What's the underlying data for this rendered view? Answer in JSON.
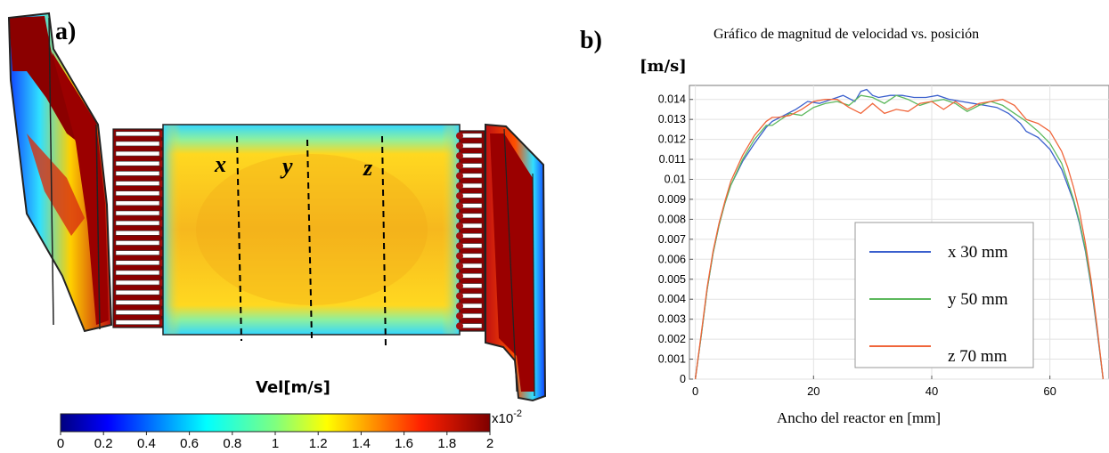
{
  "panel_a": {
    "label": "a)",
    "line_labels": [
      "x",
      "y",
      "z"
    ],
    "colorbar": {
      "title": "Vel[m/s]",
      "ticks": [
        "0",
        "0.2",
        "0.4",
        "0.6",
        "0.8",
        "1",
        "1.2",
        "1.4",
        "1.6",
        "1.8",
        "2"
      ],
      "exponent": "x10",
      "exponent_power": "-2",
      "colormap": "jet"
    }
  },
  "panel_b": {
    "label": "b)"
  },
  "chart_data": {
    "type": "line",
    "title": "Gráfico de magnitud de velocidad vs. posición",
    "xlabel": "Ancho del reactor en [mm]",
    "ylabel": "[m/s]",
    "xlim": [
      -1,
      70
    ],
    "ylim": [
      0,
      0.0147
    ],
    "xticks": [
      0,
      20,
      40,
      60
    ],
    "yticks": [
      0,
      0.001,
      0.002,
      0.003,
      0.004,
      0.005,
      0.006,
      0.007,
      0.008,
      0.009,
      0.01,
      0.011,
      0.012,
      0.013,
      0.014
    ],
    "ytick_labels": [
      "0",
      "0.001",
      "0.002",
      "0.003",
      "0.004",
      "0.005",
      "0.006",
      "0.007",
      "0.008",
      "0.009",
      "0.01",
      "0.011",
      "0.012",
      "0.013",
      "0.014"
    ],
    "grid": true,
    "legend_position": "bottom-right",
    "series": [
      {
        "name": "x 30 mm",
        "color": "#3a5fcd",
        "x": [
          0,
          1,
          2,
          3,
          4,
          5,
          6,
          8,
          10,
          12,
          13,
          15,
          17,
          19,
          21,
          23,
          25,
          27,
          28,
          29,
          30,
          31,
          33,
          35,
          37,
          39,
          41,
          43,
          45,
          47,
          49,
          51,
          53,
          55,
          56,
          58,
          60,
          62,
          63,
          64,
          65,
          66,
          67,
          68,
          69
        ],
        "y": [
          0,
          0.0022,
          0.0045,
          0.0063,
          0.0077,
          0.0088,
          0.0097,
          0.0109,
          0.0118,
          0.0126,
          0.0129,
          0.0132,
          0.0135,
          0.0139,
          0.0138,
          0.014,
          0.0142,
          0.0139,
          0.0144,
          0.0145,
          0.0142,
          0.0141,
          0.0142,
          0.0142,
          0.0141,
          0.0141,
          0.0142,
          0.014,
          0.0139,
          0.0138,
          0.0137,
          0.0136,
          0.0133,
          0.0128,
          0.0124,
          0.0121,
          0.0115,
          0.0105,
          0.0097,
          0.0089,
          0.0078,
          0.0064,
          0.0046,
          0.0024,
          0
        ]
      },
      {
        "name": "y 50 mm",
        "color": "#5cb85c",
        "x": [
          0,
          1,
          2,
          3,
          4,
          5,
          6,
          8,
          10,
          12,
          13,
          14,
          16,
          18,
          20,
          22,
          24,
          26,
          28,
          30,
          32,
          34,
          36,
          38,
          40,
          42,
          44,
          46,
          48,
          50,
          52,
          54,
          56,
          58,
          60,
          62,
          63,
          64,
          65,
          66,
          67,
          68,
          69
        ],
        "y": [
          0,
          0.0022,
          0.0045,
          0.0063,
          0.0077,
          0.0088,
          0.0097,
          0.011,
          0.012,
          0.0127,
          0.0127,
          0.0129,
          0.0133,
          0.0132,
          0.0136,
          0.0138,
          0.0139,
          0.0137,
          0.0142,
          0.0141,
          0.0138,
          0.0142,
          0.014,
          0.0137,
          0.0139,
          0.014,
          0.0138,
          0.0134,
          0.0137,
          0.0139,
          0.0137,
          0.0133,
          0.0129,
          0.0124,
          0.0118,
          0.0108,
          0.0099,
          0.009,
          0.0079,
          0.0065,
          0.0047,
          0.0025,
          0
        ]
      },
      {
        "name": "z 70 mm",
        "color": "#f0653a",
        "x": [
          0,
          1,
          2,
          3,
          4,
          5,
          6,
          8,
          10,
          12,
          13,
          14,
          16,
          18,
          20,
          22,
          24,
          26,
          28,
          30,
          32,
          34,
          36,
          38,
          40,
          42,
          44,
          46,
          48,
          50,
          52,
          54,
          56,
          58,
          60,
          62,
          63,
          64,
          65,
          66,
          67,
          68,
          69
        ],
        "y": [
          0,
          0.0023,
          0.0046,
          0.0064,
          0.0078,
          0.0089,
          0.0099,
          0.0112,
          0.0122,
          0.0129,
          0.0131,
          0.0131,
          0.0132,
          0.0135,
          0.0139,
          0.014,
          0.014,
          0.0136,
          0.0133,
          0.0138,
          0.0133,
          0.0135,
          0.0134,
          0.0138,
          0.0139,
          0.0135,
          0.0139,
          0.0135,
          0.0138,
          0.0139,
          0.014,
          0.0137,
          0.013,
          0.0128,
          0.0124,
          0.0114,
          0.0106,
          0.0096,
          0.0084,
          0.0068,
          0.0049,
          0.0026,
          0
        ]
      }
    ]
  }
}
